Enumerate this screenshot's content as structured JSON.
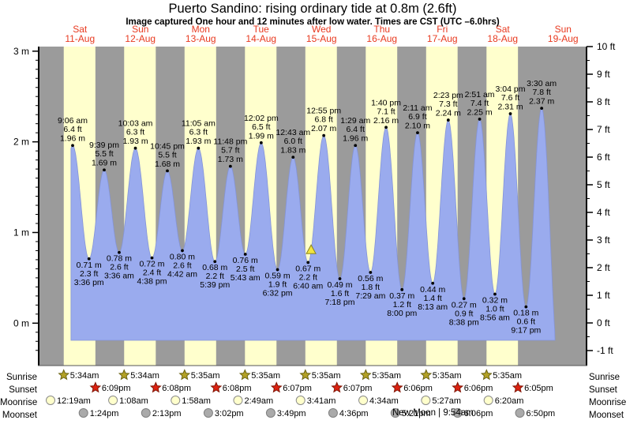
{
  "title": "Puerto Sandino: rising  ordinary tide at 0.8m (2.6ft)",
  "subtitle": "Image captured One hour and 12 minutes after low water. Times are CST (UTC –6.0hrs)",
  "colors": {
    "day_band": "#ffffcd",
    "night_band": "#9b9b9b",
    "tide_area": "#9aabee",
    "tide_area_edge": "#8494d8",
    "day_label": "#e8391f",
    "annotation": "#000000",
    "sunrise_icon": "#b3a125",
    "sunset_icon": "#dd2211",
    "moonrise_icon": "#ffffcc",
    "moonset_icon": "#aaaaaa",
    "marker_fill": "#f2e53e",
    "marker_edge": "#8a8420"
  },
  "chart_data": {
    "type": "area",
    "title": "Puerto Sandino: rising  ordinary tide at 0.8m (2.6ft)",
    "ylabel_left_unit": "m",
    "ylabel_right_unit": "ft",
    "ylim_left_m": [
      0,
      3
    ],
    "ylim_right_ft": [
      -1,
      10
    ],
    "grid": false,
    "days": [
      {
        "weekday": "Sat",
        "date": "11-Aug"
      },
      {
        "weekday": "Sun",
        "date": "12-Aug"
      },
      {
        "weekday": "Mon",
        "date": "13-Aug"
      },
      {
        "weekday": "Tue",
        "date": "14-Aug"
      },
      {
        "weekday": "Wed",
        "date": "15-Aug"
      },
      {
        "weekday": "Thu",
        "date": "16-Aug"
      },
      {
        "weekday": "Fri",
        "date": "17-Aug"
      },
      {
        "weekday": "Sat",
        "date": "18-Aug"
      },
      {
        "weekday": "Sun",
        "date": "19-Aug"
      }
    ],
    "y_axis_left": {
      "unit": "m",
      "ticks": [
        "3 m",
        "2 m",
        "1 m",
        "0 m"
      ]
    },
    "y_axis_right": {
      "unit": "ft",
      "ticks": [
        "10 ft",
        "9 ft",
        "8 ft",
        "7 ft",
        "6 ft",
        "5 ft",
        "4 ft",
        "3 ft",
        "2 ft",
        "1 ft",
        "0 ft",
        "-1 ft"
      ]
    },
    "events": [
      {
        "type": "high",
        "day": 0,
        "time": "9:06 am",
        "ft": "6.4 ft",
        "m": "1.96 m",
        "height_m": 1.96
      },
      {
        "type": "low",
        "day": 0,
        "time": "3:36 pm",
        "ft": "2.3 ft",
        "m": "0.71 m",
        "height_m": 0.71
      },
      {
        "type": "high",
        "day": 0,
        "time": "9:39 pm",
        "ft": "5.5 ft",
        "m": "1.69 m",
        "height_m": 1.69
      },
      {
        "type": "low",
        "day": 1,
        "time": "3:36 am",
        "ft": "2.6 ft",
        "m": "0.78 m",
        "height_m": 0.78
      },
      {
        "type": "high",
        "day": 1,
        "time": "10:03 am",
        "ft": "6.3 ft",
        "m": "1.93 m",
        "height_m": 1.93
      },
      {
        "type": "low",
        "day": 1,
        "time": "4:38 pm",
        "ft": "2.4 ft",
        "m": "0.72 m",
        "height_m": 0.72
      },
      {
        "type": "high",
        "day": 1,
        "time": "10:45 pm",
        "ft": "5.5 ft",
        "m": "1.68 m",
        "height_m": 1.68
      },
      {
        "type": "low",
        "day": 2,
        "time": "4:42 am",
        "ft": "2.6 ft",
        "m": "0.80 m",
        "height_m": 0.8
      },
      {
        "type": "high",
        "day": 2,
        "time": "11:05 am",
        "ft": "6.3 ft",
        "m": "1.93 m",
        "height_m": 1.93
      },
      {
        "type": "low",
        "day": 2,
        "time": "5:39 pm",
        "ft": "2.2 ft",
        "m": "0.68 m",
        "height_m": 0.68
      },
      {
        "type": "high",
        "day": 2,
        "time": "11:48 pm",
        "ft": "5.7 ft",
        "m": "1.73 m",
        "height_m": 1.73
      },
      {
        "type": "low",
        "day": 3,
        "time": "5:43 am",
        "ft": "2.5 ft",
        "m": "0.76 m",
        "height_m": 0.76
      },
      {
        "type": "high",
        "day": 3,
        "time": "12:02 pm",
        "ft": "6.5 ft",
        "m": "1.99 m",
        "height_m": 1.99
      },
      {
        "type": "low",
        "day": 3,
        "time": "6:32 pm",
        "ft": "1.9 ft",
        "m": "0.59 m",
        "height_m": 0.59
      },
      {
        "type": "high",
        "day": 4,
        "time": "12:43 am",
        "ft": "6.0 ft",
        "m": "1.83 m",
        "height_m": 1.83
      },
      {
        "type": "low",
        "day": 4,
        "time": "6:40 am",
        "ft": "2.2 ft",
        "m": "0.67 m",
        "height_m": 0.67
      },
      {
        "type": "high",
        "day": 4,
        "time": "12:55 pm",
        "ft": "6.8 ft",
        "m": "2.07 m",
        "height_m": 2.07
      },
      {
        "type": "low",
        "day": 4,
        "time": "7:18 pm",
        "ft": "1.6 ft",
        "m": "0.49 m",
        "height_m": 0.49
      },
      {
        "type": "high",
        "day": 5,
        "time": "1:29 am",
        "ft": "6.4 ft",
        "m": "1.96 m",
        "height_m": 1.96
      },
      {
        "type": "low",
        "day": 5,
        "time": "7:29 am",
        "ft": "1.8 ft",
        "m": "0.56 m",
        "height_m": 0.56
      },
      {
        "type": "high",
        "day": 5,
        "time": "1:40 pm",
        "ft": "7.1 ft",
        "m": "2.16 m",
        "height_m": 2.16
      },
      {
        "type": "low",
        "day": 5,
        "time": "8:00 pm",
        "ft": "1.2 ft",
        "m": "0.37 m",
        "height_m": 0.37
      },
      {
        "type": "high",
        "day": 6,
        "time": "2:11 am",
        "ft": "6.9 ft",
        "m": "2.10 m",
        "height_m": 2.1
      },
      {
        "type": "low",
        "day": 6,
        "time": "8:13 am",
        "ft": "1.4 ft",
        "m": "0.44 m",
        "height_m": 0.44
      },
      {
        "type": "high",
        "day": 6,
        "time": "2:23 pm",
        "ft": "7.3 ft",
        "m": "2.24 m",
        "height_m": 2.24
      },
      {
        "type": "low",
        "day": 6,
        "time": "8:38 pm",
        "ft": "0.9 ft",
        "m": "0.27 m",
        "height_m": 0.27
      },
      {
        "type": "high",
        "day": 7,
        "time": "2:51 am",
        "ft": "7.4 ft",
        "m": "2.25 m",
        "height_m": 2.25
      },
      {
        "type": "low",
        "day": 7,
        "time": "8:56 am",
        "ft": "1.0 ft",
        "m": "0.32 m",
        "height_m": 0.32
      },
      {
        "type": "high",
        "day": 7,
        "time": "3:04 pm",
        "ft": "7.6 ft",
        "m": "2.31 m",
        "height_m": 2.31
      },
      {
        "type": "low",
        "day": 7,
        "time": "9:17 pm",
        "ft": "0.6 ft",
        "m": "0.18 m",
        "height_m": 0.18
      },
      {
        "type": "high",
        "day": 8,
        "time": "3:30 am",
        "ft": "7.8 ft",
        "m": "2.37 m",
        "height_m": 2.37
      }
    ],
    "capture_marker": {
      "day": 4,
      "time": "7:52 am",
      "symbol": "yellow-triangle"
    }
  },
  "footer": {
    "rows": [
      {
        "id": "sunrise",
        "label": "Sunrise",
        "icon": "sunrise-star-icon",
        "times": [
          "5:34am",
          "5:34am",
          "5:35am",
          "5:35am",
          "5:35am",
          "5:35am",
          "5:35am",
          "5:35am"
        ]
      },
      {
        "id": "sunset",
        "label": "Sunset",
        "icon": "sunset-star-icon",
        "times": [
          "6:09pm",
          "6:08pm",
          "6:08pm",
          "6:07pm",
          "6:07pm",
          "6:06pm",
          "6:06pm",
          "6:05pm"
        ]
      },
      {
        "id": "moonrise",
        "label": "Moonrise",
        "icon": "moonrise-circle-icon",
        "times": [
          "12:19am",
          "1:08am",
          "1:58am",
          "2:49am",
          "3:41am",
          "4:34am",
          "5:27am",
          "6:20am"
        ]
      },
      {
        "id": "moonset",
        "label": "Moonset",
        "icon": "moonset-circle-icon",
        "times": [
          "1:24pm",
          "2:13pm",
          "3:02pm",
          "3:49pm",
          "4:36pm",
          "5:21pm",
          "6:06pm",
          "6:50pm"
        ]
      }
    ],
    "moon_phase": "New Moon | 9:54am"
  }
}
